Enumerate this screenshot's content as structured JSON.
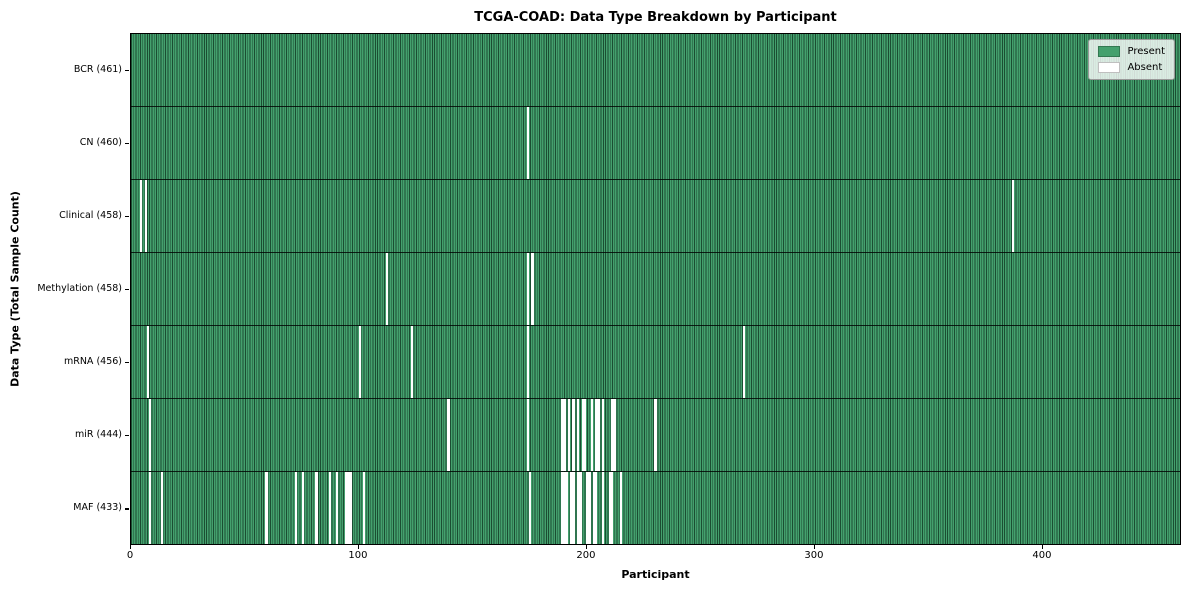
{
  "title": "TCGA-COAD: Data Type Breakdown by Participant",
  "legend": {
    "items": [
      {
        "label": "Present",
        "color": "#44a06d"
      },
      {
        "label": "Absent",
        "color": "#ffffff"
      }
    ]
  },
  "chart_data": {
    "type": "heatmap",
    "title": "TCGA-COAD: Data Type Breakdown by Participant",
    "xlabel": "Participant",
    "ylabel": "Data Type (Total Sample Count)",
    "x_ticks": [
      0,
      100,
      200,
      300,
      400
    ],
    "xlim": [
      0,
      461
    ],
    "n_participants": 461,
    "grid": false,
    "legend_position": "upper right",
    "legend_entries": [
      "Present",
      "Absent"
    ],
    "colors": {
      "present_fill": "#44a06d",
      "present_edge": "#1b4d32",
      "absent_fill": "#ffffff",
      "row_separator": "#000000"
    },
    "rows": [
      {
        "data_type": "BCR",
        "label": "BCR (461)",
        "present_count": 461,
        "absent_participants": []
      },
      {
        "data_type": "CN",
        "label": "CN (460)",
        "present_count": 460,
        "absent_participants": [
          174
        ]
      },
      {
        "data_type": "Clinical",
        "label": "Clinical (458)",
        "present_count": 458,
        "absent_participants": [
          4,
          6,
          387
        ]
      },
      {
        "data_type": "Methylation",
        "label": "Methylation (458)",
        "present_count": 458,
        "absent_participants": [
          112,
          174,
          176
        ]
      },
      {
        "data_type": "mRNA",
        "label": "mRNA (456)",
        "present_count": 456,
        "absent_participants": [
          7,
          100,
          123,
          174,
          269
        ]
      },
      {
        "data_type": "miR",
        "label": "miR (444)",
        "present_count": 444,
        "absent_participants": [
          8,
          139,
          174,
          189,
          190,
          192,
          194,
          196,
          198,
          199,
          202,
          204,
          205,
          207,
          211,
          212,
          230
        ]
      },
      {
        "data_type": "MAF",
        "label": "MAF (433)",
        "present_count": 433,
        "absent_participants": [
          8,
          13,
          59,
          72,
          75,
          81,
          87,
          90,
          94,
          95,
          96,
          102,
          175,
          189,
          190,
          191,
          193,
          194,
          196,
          197,
          200,
          201,
          203,
          204,
          207,
          210,
          211,
          215
        ]
      }
    ]
  }
}
